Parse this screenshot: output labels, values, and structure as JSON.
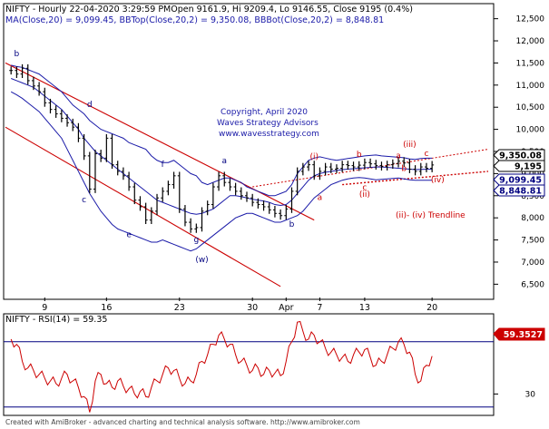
{
  "header": {
    "line1": "NIFTY - Hourly 22-04-2020 3:29:59 PMOpen 9161.9, Hi 9209.4, Lo 9146.55, Close 9195 (0.4%)",
    "line2": "MA(Close,20) = 9,099.45, BBTop(Close,20,2) = 9,350.08, BBBot(Close,20,2) = 8,848.81"
  },
  "copyright": {
    "line1": "Copyright, April 2020",
    "line2": "Waves Strategy Advisors",
    "line3": "www.wavesstrategy.com"
  },
  "trendline_label": "(ii)- (iv) Trendline",
  "footer": "Created with AmiBroker - advanced charting and technical analysis software. http://www.amibroker.com",
  "rsi_header": "NIFTY - RSI(14) = 59.35",
  "colors": {
    "price": "#000000",
    "bands": "#1a1aa8",
    "channel": "#cc0000",
    "trendline": "#cc0000",
    "wave_black": "#000080",
    "wave_red": "#cc0000",
    "rsi": "#cc0000",
    "rsi_levels": "#000080",
    "tag_bbtop": "#000000",
    "tag_close": "#000000",
    "tag_ma": "#000080",
    "tag_bbbot": "#000080",
    "tag_rsi": "#cc0000"
  },
  "chart_data": [
    {
      "type": "line",
      "title": "NIFTY - Hourly",
      "y_axis": {
        "min": 6200,
        "max": 12800,
        "ticks": [
          6500,
          7000,
          7500,
          8000,
          8500,
          9000,
          9500,
          10000,
          10500,
          11000,
          11500,
          12000,
          12500
        ],
        "tick_labels": [
          "6,500",
          "7,000",
          "7,500",
          "8,000",
          "8,500",
          "9,000",
          "9,500",
          "10,000",
          "10,500",
          "11,000",
          "11,500",
          "12,000",
          "12,500"
        ]
      },
      "x_axis": {
        "ticks": [
          {
            "label": "9",
            "bar": 7
          },
          {
            "label": "16",
            "bar": 18
          },
          {
            "label": "23",
            "bar": 31
          },
          {
            "label": "30",
            "bar": 44
          },
          {
            "label": "Apr",
            "bar": 50
          },
          {
            "label": "7",
            "bar": 56
          },
          {
            "label": "13",
            "bar": 64
          },
          {
            "label": "20",
            "bar": 76
          }
        ]
      },
      "series": [
        {
          "id": "close",
          "values": [
            11330,
            11250,
            11380,
            11100,
            10980,
            10850,
            10600,
            10450,
            10350,
            10250,
            10150,
            10050,
            9800,
            9400,
            8650,
            9450,
            9350,
            9800,
            9200,
            9050,
            8950,
            8700,
            8400,
            8250,
            7950,
            8150,
            8450,
            8600,
            8750,
            8950,
            8200,
            7900,
            7750,
            7780,
            8150,
            8300,
            8700,
            8950,
            8800,
            8700,
            8600,
            8500,
            8450,
            8350,
            8300,
            8250,
            8180,
            8100,
            8050,
            8200,
            8600,
            9050,
            9150,
            9200,
            8950,
            9050,
            9150,
            9100,
            9120,
            9200,
            9180,
            9150,
            9190,
            9250,
            9220,
            9180,
            9160,
            9200,
            9230,
            9280,
            9240,
            9100,
            9050,
            9150,
            9120,
            9195
          ]
        },
        {
          "id": "bb_top",
          "values": [
            11450,
            11420,
            11400,
            11350,
            11300,
            11250,
            11150,
            11050,
            10950,
            10850,
            10700,
            10550,
            10450,
            10350,
            10200,
            10100,
            10000,
            9950,
            9900,
            9850,
            9800,
            9700,
            9650,
            9600,
            9550,
            9400,
            9300,
            9250,
            9250,
            9300,
            9200,
            9100,
            9000,
            8950,
            8800,
            8750,
            8800,
            8850,
            8900,
            8900,
            8850,
            8800,
            8700,
            8650,
            8600,
            8550,
            8500,
            8500,
            8550,
            8600,
            8750,
            9000,
            9150,
            9300,
            9350,
            9380,
            9350,
            9320,
            9300,
            9320,
            9340,
            9360,
            9380,
            9400,
            9410,
            9420,
            9400,
            9390,
            9380,
            9370,
            9360,
            9330,
            9320,
            9340,
            9350,
            9350
          ]
        },
        {
          "id": "ma",
          "values": [
            11150,
            11100,
            11050,
            11000,
            10950,
            10850,
            10750,
            10650,
            10550,
            10450,
            10300,
            10150,
            10000,
            9800,
            9650,
            9500,
            9400,
            9300,
            9200,
            9100,
            9000,
            8900,
            8800,
            8700,
            8600,
            8500,
            8400,
            8350,
            8300,
            8250,
            8200,
            8150,
            8100,
            8080,
            8100,
            8150,
            8200,
            8300,
            8400,
            8500,
            8500,
            8480,
            8450,
            8420,
            8400,
            8380,
            8350,
            8300,
            8280,
            8300,
            8400,
            8550,
            8700,
            8850,
            8950,
            9000,
            9030,
            9050,
            9070,
            9090,
            9100,
            9110,
            9120,
            9130,
            9140,
            9150,
            9150,
            9140,
            9130,
            9120,
            9110,
            9100,
            9090,
            9095,
            9098,
            9099
          ]
        },
        {
          "id": "bb_bot",
          "values": [
            10850,
            10780,
            10700,
            10600,
            10500,
            10400,
            10250,
            10100,
            9950,
            9800,
            9550,
            9300,
            9050,
            8800,
            8550,
            8350,
            8150,
            8000,
            7850,
            7750,
            7700,
            7650,
            7600,
            7550,
            7500,
            7450,
            7450,
            7500,
            7450,
            7400,
            7350,
            7300,
            7250,
            7300,
            7400,
            7500,
            7600,
            7700,
            7800,
            7900,
            8000,
            8050,
            8100,
            8100,
            8050,
            8000,
            7950,
            7900,
            7900,
            7950,
            8000,
            8050,
            8150,
            8300,
            8450,
            8550,
            8650,
            8750,
            8800,
            8850,
            8880,
            8900,
            8910,
            8900,
            8880,
            8860,
            8870,
            8880,
            8890,
            8900,
            8880,
            8860,
            8850,
            8850,
            8849,
            8849
          ]
        }
      ],
      "last_values": {
        "bb_top": "9,350.08",
        "close": "9,195",
        "ma": "9,099.45",
        "bb_bot": "8,848.81"
      },
      "channel": {
        "upper": {
          "from": [
            0,
            11500
          ],
          "to": [
            55,
            7950
          ]
        },
        "lower": {
          "from": [
            0,
            10050
          ],
          "to": [
            49,
            6450
          ]
        }
      },
      "trendline": {
        "from": [
          44,
          8700
        ],
        "to": [
          86,
          9550
        ],
        "extends_to_bar": 86
      },
      "trendline_support": {
        "from": [
          60,
          8750
        ],
        "to": [
          86,
          9050
        ]
      },
      "wave_labels": [
        {
          "text": "b",
          "bar": 2,
          "value": 11650,
          "color": "black"
        },
        {
          "text": "c",
          "bar": 14,
          "value": 8350,
          "color": "black"
        },
        {
          "text": "d",
          "bar": 15,
          "value": 10500,
          "color": "black"
        },
        {
          "text": "e",
          "bar": 22,
          "value": 7560,
          "color": "black"
        },
        {
          "text": "f",
          "bar": 28,
          "value": 9150,
          "color": "black"
        },
        {
          "text": "g",
          "bar": 34,
          "value": 7450,
          "color": "black"
        },
        {
          "text": "(w)",
          "bar": 35,
          "value": 7000,
          "color": "black"
        },
        {
          "text": "a",
          "bar": 39,
          "value": 9230,
          "color": "black"
        },
        {
          "text": "b",
          "bar": 51,
          "value": 7800,
          "color": "black"
        },
        {
          "text": "(i)",
          "bar": 55,
          "value": 9330,
          "color": "red"
        },
        {
          "text": "a",
          "bar": 56,
          "value": 8400,
          "color": "red"
        },
        {
          "text": "b",
          "bar": 63,
          "value": 9380,
          "color": "red"
        },
        {
          "text": "c",
          "bar": 64,
          "value": 8630,
          "color": "red"
        },
        {
          "text": "(ii)",
          "bar": 64,
          "value": 8480,
          "color": "red"
        },
        {
          "text": "a",
          "bar": 70,
          "value": 9350,
          "color": "red"
        },
        {
          "text": "(iii)",
          "bar": 72,
          "value": 9600,
          "color": "red"
        },
        {
          "text": "b",
          "bar": 71,
          "value": 9060,
          "color": "red"
        },
        {
          "text": "c",
          "bar": 75,
          "value": 9400,
          "color": "red"
        },
        {
          "text": "(iv)",
          "bar": 77,
          "value": 8800,
          "color": "red"
        }
      ]
    },
    {
      "type": "line",
      "title": "NIFTY - RSI(14)",
      "y_axis": {
        "min": 15,
        "max": 90,
        "ticks": [
          30
        ],
        "tick_labels": [
          "30"
        ],
        "levels": [
          70,
          20
        ]
      },
      "series": [
        {
          "id": "rsi",
          "values": [
            72,
            68,
            55,
            50,
            48,
            45,
            42,
            40,
            38,
            42,
            45,
            40,
            35,
            28,
            16,
            40,
            45,
            38,
            35,
            40,
            36,
            34,
            30,
            32,
            28,
            35,
            40,
            45,
            50,
            48,
            42,
            38,
            40,
            45,
            55,
            60,
            68,
            75,
            72,
            68,
            60,
            55,
            52,
            48,
            50,
            45,
            48,
            46,
            44,
            55,
            70,
            85,
            78,
            72,
            75,
            70,
            65,
            62,
            60,
            58,
            55,
            60,
            62,
            64,
            58,
            52,
            55,
            60,
            65,
            70,
            68,
            62,
            45,
            40,
            52,
            59
          ]
        }
      ],
      "last_value": "59.3527"
    }
  ]
}
